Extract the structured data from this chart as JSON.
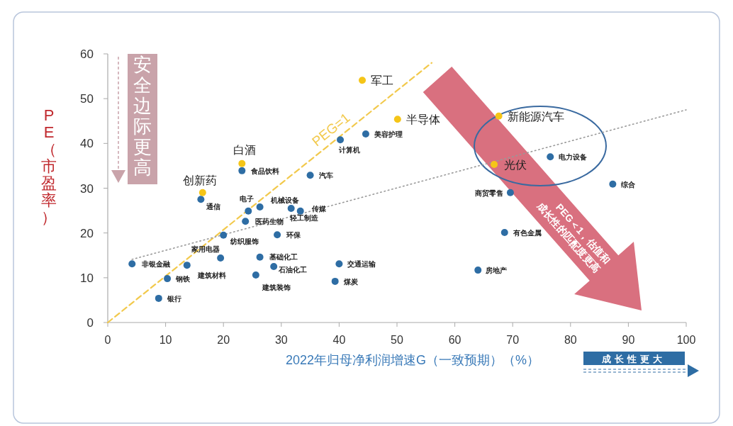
{
  "chart_data": {
    "type": "scatter",
    "xlabel": "2022年归母净利润增速G（一致预期）（%）",
    "ylabel": "PE（市盈率）",
    "xlim": [
      0,
      100
    ],
    "ylim": [
      0,
      60
    ],
    "xticks": [
      0,
      10,
      20,
      30,
      40,
      50,
      60,
      70,
      80,
      90,
      100
    ],
    "yticks": [
      0,
      10,
      20,
      30,
      40,
      50,
      60
    ],
    "marker": "circle",
    "series": [
      {
        "color": "#2e6da4",
        "x": [
          4.2,
          10.3,
          8.8,
          13.7,
          19.5,
          20.0,
          24.3,
          23.8,
          26.3,
          31.7,
          33.3,
          35.0,
          23.2,
          16.1,
          29.3,
          26.3,
          28.7,
          25.6,
          40.0,
          39.3,
          40.2,
          44.6,
          76.5,
          69.6,
          87.3,
          68.6,
          64.0
        ],
        "values": [
          13.1,
          9.8,
          5.4,
          12.8,
          14.4,
          19.5,
          24.9,
          22.6,
          25.8,
          25.5,
          24.9,
          32.9,
          33.9,
          27.5,
          19.6,
          14.6,
          12.5,
          10.6,
          13.1,
          9.2,
          40.8,
          42.1,
          37.0,
          29.0,
          30.9,
          20.1,
          11.7
        ]
      },
      {
        "color": "#f5c518",
        "x": [
          16.4,
          23.2,
          44.0,
          50.1,
          67.6,
          66.8
        ],
        "values": [
          29.0,
          35.5,
          54.1,
          45.4,
          46.1,
          35.3
        ]
      },
      {
        "name": "PEG=1",
        "type": "line",
        "marker": "none",
        "color": "#f2c94c",
        "line_style": "dashed",
        "x": [
          0,
          56
        ],
        "values": [
          0,
          58
        ]
      },
      {
        "type": "line",
        "marker": "none",
        "color": "#999999",
        "line_style": "dotted",
        "x": [
          4.2,
          100
        ],
        "values": [
          14.1,
          47.5
        ]
      }
    ],
    "annotations": [
      {
        "text": "非银金融",
        "x": 4.2,
        "y": 13.1
      },
      {
        "text": "钢铁",
        "x": 10.3,
        "y": 9.8
      },
      {
        "text": "银行",
        "x": 8.8,
        "y": 5.4
      },
      {
        "text": "建筑材料",
        "x": 13.7,
        "y": 12.8
      },
      {
        "text": "家用电器",
        "x": 19.5,
        "y": 14.4
      },
      {
        "text": "纺织服饰",
        "x": 20.0,
        "y": 19.5
      },
      {
        "text": "电子",
        "x": 24.3,
        "y": 24.9
      },
      {
        "text": "医药生物",
        "x": 23.8,
        "y": 22.6
      },
      {
        "text": "机械设备",
        "x": 26.3,
        "y": 25.8
      },
      {
        "text": "轻工制造",
        "x": 31.7,
        "y": 25.5
      },
      {
        "text": "传媒",
        "x": 33.3,
        "y": 24.9
      },
      {
        "text": "汽车",
        "x": 35.0,
        "y": 32.9
      },
      {
        "text": "食品饮料",
        "x": 23.2,
        "y": 33.9
      },
      {
        "text": "通信",
        "x": 16.1,
        "y": 27.5
      },
      {
        "text": "环保",
        "x": 29.3,
        "y": 19.6
      },
      {
        "text": "基础化工",
        "x": 26.3,
        "y": 14.6
      },
      {
        "text": "石油化工",
        "x": 28.7,
        "y": 12.5
      },
      {
        "text": "建筑装饰",
        "x": 25.6,
        "y": 10.6
      },
      {
        "text": "交通运输",
        "x": 40.0,
        "y": 13.1
      },
      {
        "text": "煤炭",
        "x": 39.3,
        "y": 9.2
      },
      {
        "text": "计算机",
        "x": 40.2,
        "y": 40.8
      },
      {
        "text": "美容护理",
        "x": 44.6,
        "y": 42.1
      },
      {
        "text": "电力设备",
        "x": 76.5,
        "y": 37.0
      },
      {
        "text": "商贸零售",
        "x": 69.6,
        "y": 29.0
      },
      {
        "text": "综合",
        "x": 87.3,
        "y": 30.9
      },
      {
        "text": "有色金属",
        "x": 68.6,
        "y": 20.1
      },
      {
        "text": "房地产",
        "x": 64.0,
        "y": 11.7
      },
      {
        "text": "创新药",
        "x": 16.4,
        "y": 29.0
      },
      {
        "text": "白酒",
        "x": 23.2,
        "y": 35.5
      },
      {
        "text": "军工",
        "x": 44.0,
        "y": 54.1
      },
      {
        "text": "半导体",
        "x": 50.1,
        "y": 45.4
      },
      {
        "text": "新能源汽车",
        "x": 67.6,
        "y": 46.1
      },
      {
        "text": "光伏",
        "x": 66.8,
        "y": 35.3
      },
      "安全边际更高",
      "PEG＜1，估值和成长性的匹配度更高",
      "成长性更大"
    ]
  }
}
